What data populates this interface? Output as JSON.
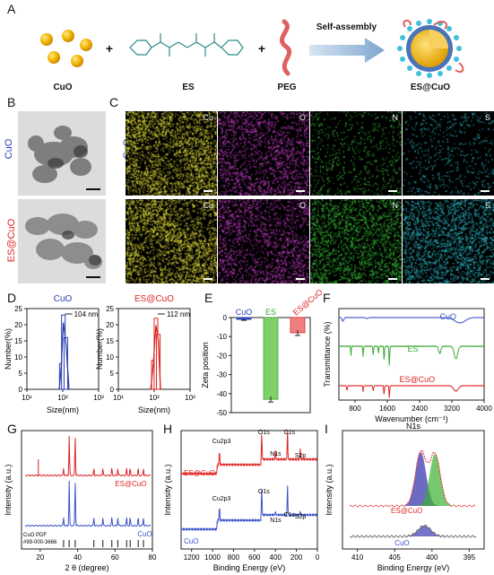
{
  "panels": {
    "A": "A",
    "B": "B",
    "C": "C",
    "D": "D",
    "E": "E",
    "F": "F",
    "G": "G",
    "H": "H",
    "I": "I"
  },
  "scheme": {
    "cuo": "CuO",
    "es": "ES",
    "peg": "PEG",
    "product": "ES@CuO",
    "arrow_label": "Self-assembly",
    "plus": "+"
  },
  "rows": {
    "cuo": "CuO",
    "escuo": "ES@CuO"
  },
  "colors": {
    "cuo": "#2b3fb0",
    "escuo": "#e02424",
    "es": "#3aa832",
    "cu": "#e8e23a",
    "o": "#d040d0",
    "n": "#3ad03a",
    "s": "#30c8d8"
  },
  "edx": {
    "cu": "Cu",
    "o": "O",
    "n": "N",
    "s": "S"
  },
  "panel_d": {
    "ylabel": "Number(%)",
    "xlabel": "Size(nm)",
    "yticks": [
      "0",
      "5",
      "10",
      "15",
      "20",
      "25"
    ],
    "xticks": [
      "10¹",
      "10²",
      "10³"
    ],
    "left": {
      "title": "CuO",
      "peak": "104 nm"
    },
    "right": {
      "title": "ES@CuO",
      "peak": "112 nm"
    }
  },
  "panel_e": {
    "ylabel": "Zeta position",
    "yticks": [
      "0",
      "-10",
      "-20",
      "-30",
      "-40",
      "-50"
    ],
    "categories": [
      "CuO",
      "ES",
      "ES@CuO"
    ]
  },
  "panel_f": {
    "ylabel": "Transmittance (%)",
    "xlabel": "Wavenumber (cm⁻¹)",
    "xticks": [
      "800",
      "1600",
      "2400",
      "3200",
      "4000"
    ],
    "labels": {
      "cuo": "CuO",
      "es": "ES",
      "escuo": "ES@CuO"
    }
  },
  "panel_g": {
    "ylabel": "Intensity (a.u.)",
    "xlabel": "2 θ (degree)",
    "xticks": [
      "20",
      "40",
      "60",
      "80"
    ],
    "labels": {
      "escuo": "ES@CuO",
      "cuo": "CuO",
      "pdf1": "CuO PDF",
      "pdf2": "#99-000-3666"
    }
  },
  "panel_h": {
    "ylabel": "Intensity (a.u.)",
    "xlabel": "Binding Energy (eV)",
    "xticks": [
      "1200",
      "1000",
      "800",
      "600",
      "400",
      "200",
      "0"
    ],
    "labels": {
      "escuo": "ES@CuO",
      "cuo": "CuO",
      "cu2p3": "Cu2p3",
      "o1s": "O1s",
      "c1s": "C1s",
      "n1s": "N1s",
      "s2p": "S2p"
    }
  },
  "panel_i": {
    "title": "N1s",
    "ylabel": "Intensity (a.u.)",
    "xlabel": "Binding Energy (eV)",
    "xticks": [
      "410",
      "405",
      "400",
      "395"
    ],
    "labels": {
      "escuo": "ES@CuO",
      "cuo": "CuO"
    }
  },
  "chart_data": [
    {
      "type": "bar",
      "panel": "D-left",
      "title": "CuO",
      "xlabel": "Size(nm)",
      "ylabel": "Number(%)",
      "xscale": "log",
      "xlim": [
        10,
        1000
      ],
      "ylim": [
        0,
        25
      ],
      "x": [
        91,
        104,
        122
      ],
      "values": [
        8,
        23,
        16
      ]
    },
    {
      "type": "bar",
      "panel": "D-right",
      "title": "ES@CuO",
      "xlabel": "Size(nm)",
      "ylabel": "Number(%)",
      "xscale": "log",
      "xlim": [
        10,
        1000
      ],
      "ylim": [
        0,
        25
      ],
      "x": [
        95,
        112,
        130
      ],
      "values": [
        9,
        22,
        17
      ]
    },
    {
      "type": "bar",
      "panel": "E",
      "ylabel": "Zeta position",
      "ylim": [
        -50,
        0
      ],
      "categories": [
        "CuO",
        "ES",
        "ES@CuO"
      ],
      "values": [
        -1,
        -43,
        -8
      ],
      "errors": [
        0.5,
        1.5,
        1.5
      ]
    },
    {
      "type": "line",
      "panel": "F",
      "xlabel": "Wavenumber (cm⁻¹)",
      "ylabel": "Transmittance (%)",
      "xlim": [
        400,
        4000
      ],
      "series": [
        {
          "name": "CuO"
        },
        {
          "name": "ES"
        },
        {
          "name": "ES@CuO"
        }
      ]
    },
    {
      "type": "line",
      "panel": "G",
      "xlabel": "2 θ (degree)",
      "ylabel": "Intensity (a.u.)",
      "xlim": [
        10,
        80
      ],
      "series": [
        {
          "name": "ES@CuO",
          "peaks": [
            35.5,
            38.7
          ]
        },
        {
          "name": "CuO",
          "peaks": [
            35.5,
            38.7
          ]
        }
      ],
      "reference_lines": [
        32.5,
        35.5,
        38.7,
        48.7,
        53.5,
        58.3,
        61.5,
        66.2,
        68.1,
        72.4,
        75.2
      ]
    },
    {
      "type": "line",
      "panel": "H",
      "xlabel": "Binding Energy (eV)",
      "ylabel": "Intensity (a.u.)",
      "xlim": [
        1300,
        0
      ],
      "series": [
        {
          "name": "ES@CuO"
        },
        {
          "name": "CuO"
        }
      ]
    },
    {
      "type": "line",
      "panel": "I",
      "title": "N1s",
      "xlabel": "Binding Energy (eV)",
      "ylabel": "Intensity (a.u.)",
      "xlim": [
        412,
        393
      ],
      "series": [
        {
          "name": "ES@CuO",
          "peaks": [
            401.5,
            399.6
          ]
        },
        {
          "name": "CuO",
          "peaks": [
            401
          ]
        }
      ]
    }
  ]
}
